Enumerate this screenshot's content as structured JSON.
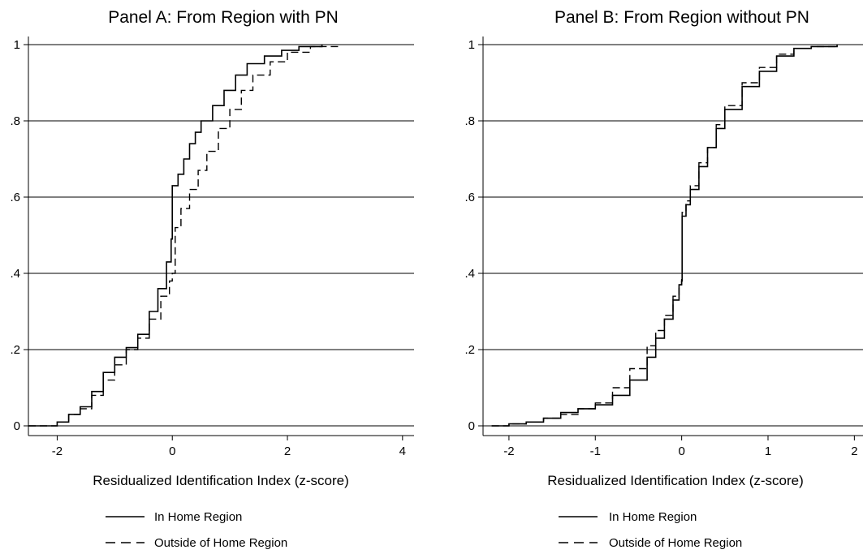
{
  "chart_data": [
    {
      "type": "line",
      "title": "Panel A: From Region with PN",
      "xlabel": "Residualized Identification Index (z-score)",
      "ylabel": "",
      "xlim": [
        -2.5,
        4.2
      ],
      "ylim": [
        0,
        1
      ],
      "xticks": [
        -2,
        0,
        2,
        4
      ],
      "xtick_labels": [
        "-2",
        "0",
        "2",
        "4"
      ],
      "yticks": [
        0,
        0.2,
        0.4,
        0.6,
        0.8,
        1
      ],
      "ytick_labels": [
        "0",
        ".2",
        ".4",
        ".6",
        ".8",
        "1"
      ],
      "grid": "horizontal",
      "legend": "bottom",
      "series": [
        {
          "name": "In Home Region",
          "style": "solid",
          "points": [
            [
              -2.5,
              0
            ],
            [
              -2.2,
              0
            ],
            [
              -2.0,
              0.01
            ],
            [
              -1.8,
              0.03
            ],
            [
              -1.6,
              0.05
            ],
            [
              -1.4,
              0.09
            ],
            [
              -1.2,
              0.14
            ],
            [
              -1.0,
              0.18
            ],
            [
              -0.8,
              0.205
            ],
            [
              -0.6,
              0.24
            ],
            [
              -0.4,
              0.3
            ],
            [
              -0.25,
              0.36
            ],
            [
              -0.1,
              0.43
            ],
            [
              -0.02,
              0.49
            ],
            [
              0,
              0.63
            ],
            [
              0.1,
              0.66
            ],
            [
              0.2,
              0.7
            ],
            [
              0.3,
              0.74
            ],
            [
              0.4,
              0.77
            ],
            [
              0.5,
              0.8
            ],
            [
              0.7,
              0.84
            ],
            [
              0.9,
              0.88
            ],
            [
              1.1,
              0.92
            ],
            [
              1.3,
              0.95
            ],
            [
              1.6,
              0.97
            ],
            [
              1.9,
              0.985
            ],
            [
              2.2,
              0.995
            ],
            [
              2.6,
              1.0
            ]
          ]
        },
        {
          "name": "Outside of Home Region",
          "style": "dashed",
          "points": [
            [
              -2.5,
              0
            ],
            [
              -2.2,
              0
            ],
            [
              -2.0,
              0.01
            ],
            [
              -1.8,
              0.03
            ],
            [
              -1.6,
              0.045
            ],
            [
              -1.4,
              0.08
            ],
            [
              -1.2,
              0.12
            ],
            [
              -1.0,
              0.16
            ],
            [
              -0.8,
              0.2
            ],
            [
              -0.6,
              0.23
            ],
            [
              -0.4,
              0.28
            ],
            [
              -0.2,
              0.34
            ],
            [
              -0.05,
              0.38
            ],
            [
              0.0,
              0.4
            ],
            [
              0.05,
              0.52
            ],
            [
              0.15,
              0.57
            ],
            [
              0.3,
              0.62
            ],
            [
              0.45,
              0.67
            ],
            [
              0.6,
              0.72
            ],
            [
              0.8,
              0.78
            ],
            [
              1.0,
              0.83
            ],
            [
              1.2,
              0.88
            ],
            [
              1.4,
              0.92
            ],
            [
              1.7,
              0.955
            ],
            [
              2.0,
              0.98
            ],
            [
              2.4,
              0.995
            ],
            [
              2.9,
              1.0
            ]
          ]
        }
      ]
    },
    {
      "type": "line",
      "title": "Panel B: From Region without PN",
      "xlabel": "Residualized Identification Index (z-score)",
      "ylabel": "",
      "xlim": [
        -2.3,
        2.1
      ],
      "ylim": [
        0,
        1
      ],
      "xticks": [
        -2,
        -1,
        0,
        1,
        2
      ],
      "xtick_labels": [
        "-2",
        "-1",
        "0",
        "1",
        "2"
      ],
      "yticks": [
        0,
        0.2,
        0.4,
        0.6,
        0.8,
        1
      ],
      "ytick_labels": [
        "0",
        ".2",
        ".4",
        ".6",
        ".8",
        "1"
      ],
      "grid": "horizontal",
      "legend": "bottom",
      "series": [
        {
          "name": "In Home Region",
          "style": "solid",
          "points": [
            [
              -2.2,
              0
            ],
            [
              -2.0,
              0.005
            ],
            [
              -1.8,
              0.01
            ],
            [
              -1.6,
              0.02
            ],
            [
              -1.4,
              0.035
            ],
            [
              -1.2,
              0.045
            ],
            [
              -1.0,
              0.055
            ],
            [
              -0.8,
              0.08
            ],
            [
              -0.6,
              0.12
            ],
            [
              -0.4,
              0.18
            ],
            [
              -0.3,
              0.23
            ],
            [
              -0.2,
              0.28
            ],
            [
              -0.1,
              0.33
            ],
            [
              -0.03,
              0.37
            ],
            [
              0,
              0.38
            ],
            [
              0.005,
              0.55
            ],
            [
              0.05,
              0.58
            ],
            [
              0.1,
              0.62
            ],
            [
              0.2,
              0.68
            ],
            [
              0.3,
              0.73
            ],
            [
              0.4,
              0.78
            ],
            [
              0.5,
              0.83
            ],
            [
              0.7,
              0.89
            ],
            [
              0.9,
              0.93
            ],
            [
              1.1,
              0.97
            ],
            [
              1.3,
              0.99
            ],
            [
              1.5,
              0.995
            ],
            [
              1.8,
              1.0
            ]
          ]
        },
        {
          "name": "Outside of Home Region",
          "style": "dashed",
          "points": [
            [
              -2.2,
              0
            ],
            [
              -2.0,
              0.005
            ],
            [
              -1.8,
              0.01
            ],
            [
              -1.6,
              0.02
            ],
            [
              -1.4,
              0.03
            ],
            [
              -1.2,
              0.045
            ],
            [
              -1.0,
              0.06
            ],
            [
              -0.8,
              0.1
            ],
            [
              -0.6,
              0.15
            ],
            [
              -0.4,
              0.21
            ],
            [
              -0.3,
              0.25
            ],
            [
              -0.2,
              0.29
            ],
            [
              -0.1,
              0.34
            ],
            [
              -0.03,
              0.37
            ],
            [
              0,
              0.39
            ],
            [
              0.005,
              0.56
            ],
            [
              0.05,
              0.59
            ],
            [
              0.1,
              0.63
            ],
            [
              0.2,
              0.69
            ],
            [
              0.3,
              0.73
            ],
            [
              0.4,
              0.79
            ],
            [
              0.5,
              0.84
            ],
            [
              0.7,
              0.9
            ],
            [
              0.9,
              0.94
            ],
            [
              1.1,
              0.975
            ],
            [
              1.3,
              0.99
            ],
            [
              1.5,
              0.995
            ],
            [
              1.8,
              1.0
            ]
          ]
        }
      ]
    }
  ]
}
